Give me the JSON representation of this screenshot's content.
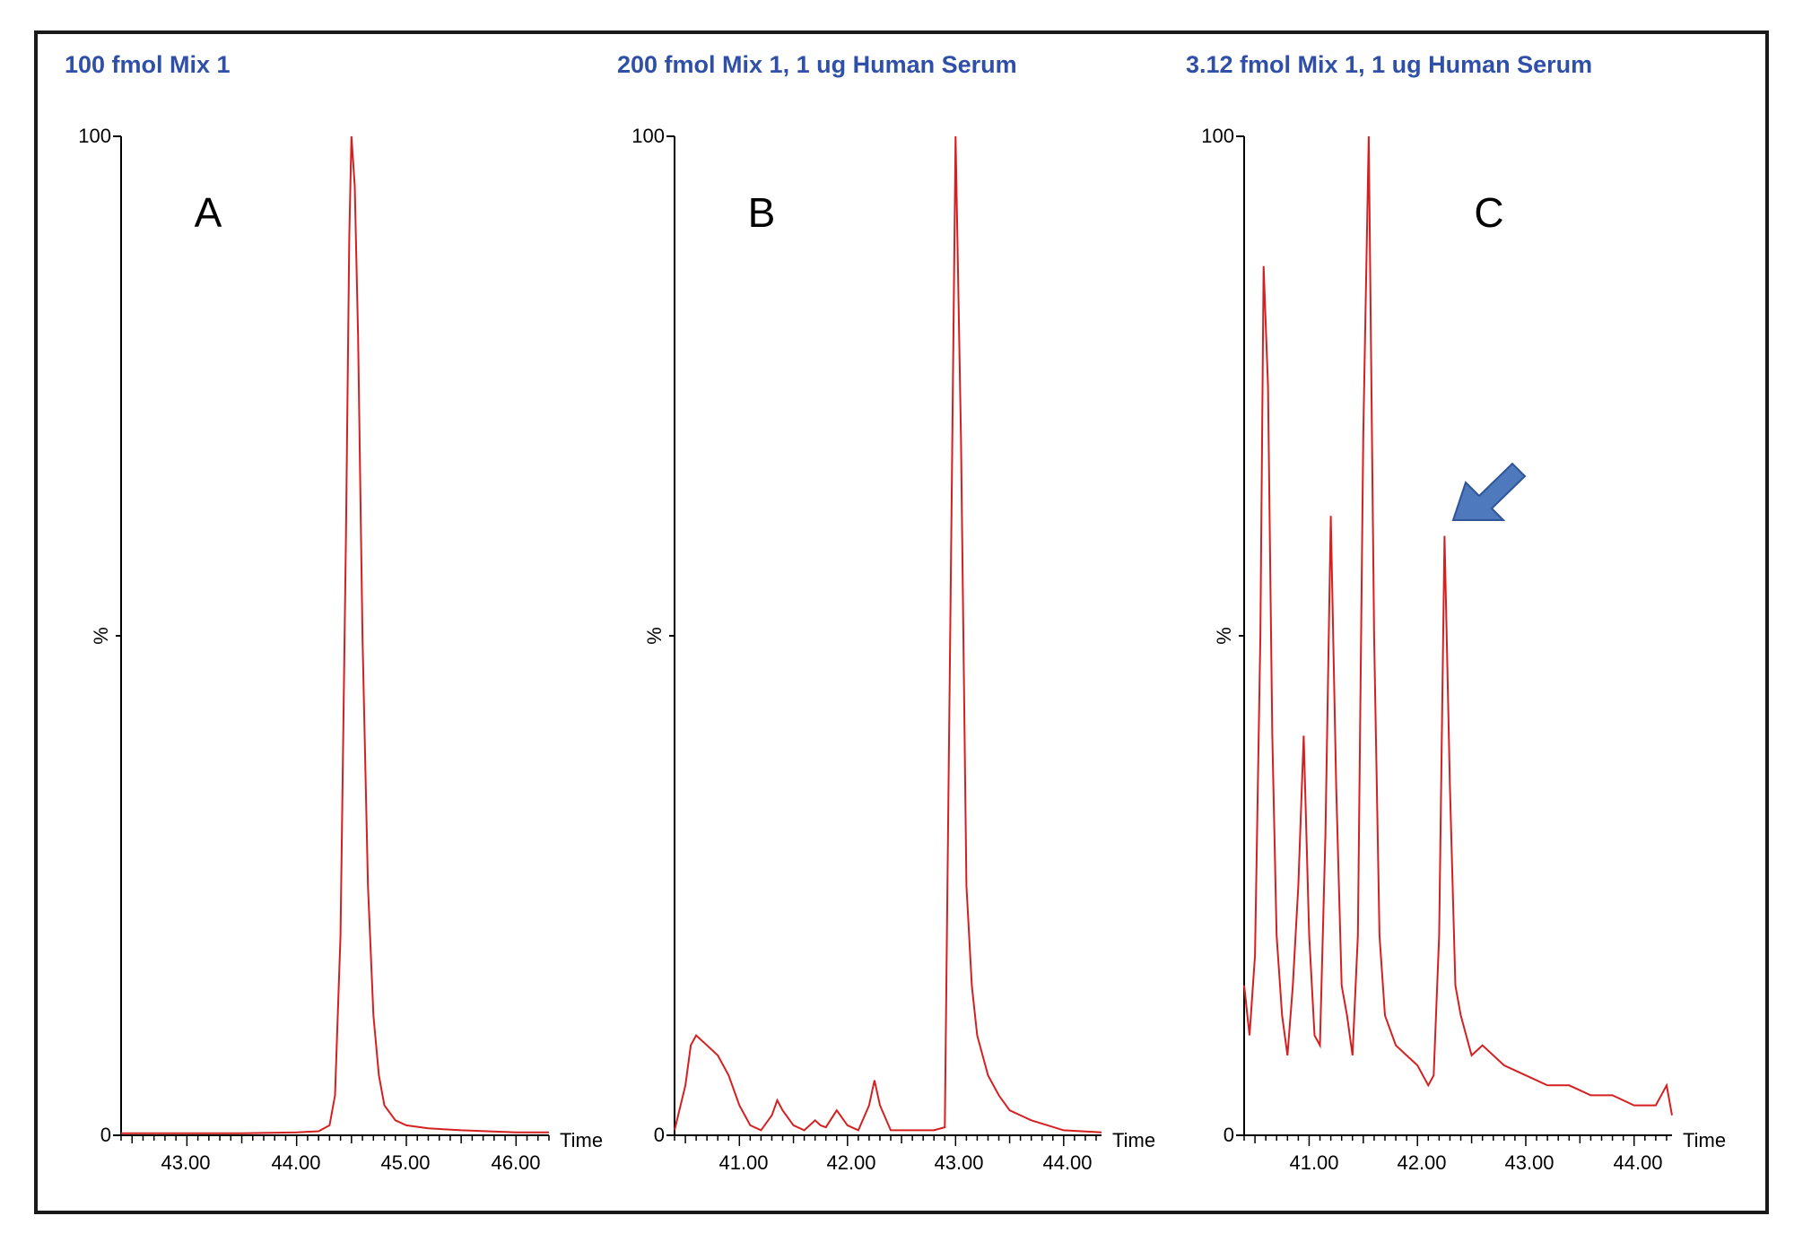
{
  "colors": {
    "frame": "#1a1a1a",
    "title": "#2f4fa8",
    "trace": "#d42020",
    "arrow": "#4f79bd",
    "arrow_edge": "#2f5597"
  },
  "chart_data": [
    {
      "type": "line",
      "title": "100 fmol Mix 1",
      "panel_letter": "A",
      "xlabel": "Time",
      "ylabel": "%",
      "xlim": [
        42.4,
        46.3
      ],
      "ylim": [
        0,
        100
      ],
      "xticks": [
        "43.00",
        "44.00",
        "45.00",
        "46.00"
      ],
      "yticks": [
        "0",
        "100"
      ],
      "series": [
        {
          "x": [
            42.4,
            43.0,
            43.5,
            44.0,
            44.2,
            44.3,
            44.35,
            44.4,
            44.45,
            44.48,
            44.5,
            44.53,
            44.56,
            44.6,
            44.65,
            44.7,
            44.75,
            44.8,
            44.9,
            45.0,
            45.2,
            45.5,
            46.0,
            46.3
          ],
          "y": [
            0.2,
            0.2,
            0.2,
            0.3,
            0.4,
            1.0,
            4.0,
            20.0,
            60.0,
            90.0,
            100.0,
            95.0,
            80.0,
            50.0,
            25.0,
            12.0,
            6.0,
            3.0,
            1.5,
            1.0,
            0.7,
            0.5,
            0.3,
            0.3
          ]
        }
      ]
    },
    {
      "type": "line",
      "title": "200 fmol Mix 1, 1 ug Human Serum",
      "panel_letter": "B",
      "xlabel": "Time",
      "ylabel": "%",
      "xlim": [
        40.4,
        44.35
      ],
      "ylim": [
        0,
        100
      ],
      "xticks": [
        "41.00",
        "42.00",
        "43.00",
        "44.00"
      ],
      "yticks": [
        "0",
        "100"
      ],
      "series": [
        {
          "x": [
            40.4,
            40.5,
            40.55,
            40.6,
            40.7,
            40.8,
            40.9,
            41.0,
            41.1,
            41.2,
            41.3,
            41.35,
            41.4,
            41.5,
            41.6,
            41.7,
            41.75,
            41.8,
            41.9,
            42.0,
            42.1,
            42.2,
            42.25,
            42.3,
            42.4,
            42.6,
            42.8,
            42.9,
            42.95,
            43.0,
            43.05,
            43.1,
            43.15,
            43.2,
            43.3,
            43.4,
            43.5,
            43.7,
            44.0,
            44.35
          ],
          "y": [
            0.5,
            5.0,
            9.0,
            10.0,
            9.0,
            8.0,
            6.0,
            3.0,
            1.0,
            0.5,
            2.0,
            3.5,
            2.5,
            1.0,
            0.5,
            1.5,
            1.0,
            0.8,
            2.5,
            1.0,
            0.5,
            3.0,
            5.5,
            3.0,
            0.5,
            0.5,
            0.5,
            0.8,
            50.0,
            100.0,
            70.0,
            25.0,
            15.0,
            10.0,
            6.0,
            4.0,
            2.5,
            1.5,
            0.5,
            0.3
          ]
        }
      ]
    },
    {
      "type": "line",
      "title": "3.12 fmol Mix 1, 1 ug Human Serum",
      "panel_letter": "C",
      "xlabel": "Time",
      "ylabel": "%",
      "xlim": [
        40.4,
        44.35
      ],
      "ylim": [
        0,
        100
      ],
      "xticks": [
        "41.00",
        "42.00",
        "43.00",
        "44.00"
      ],
      "yticks": [
        "0",
        "100"
      ],
      "series": [
        {
          "x": [
            40.4,
            40.45,
            40.5,
            40.55,
            40.58,
            40.62,
            40.66,
            40.7,
            40.75,
            40.8,
            40.85,
            40.9,
            40.95,
            41.0,
            41.05,
            41.1,
            41.15,
            41.2,
            41.25,
            41.3,
            41.35,
            41.4,
            41.45,
            41.5,
            41.55,
            41.6,
            41.65,
            41.7,
            41.8,
            41.9,
            42.0,
            42.1,
            42.15,
            42.2,
            42.25,
            42.3,
            42.35,
            42.4,
            42.5,
            42.6,
            42.8,
            43.0,
            43.2,
            43.4,
            43.6,
            43.8,
            44.0,
            44.2,
            44.3,
            44.35
          ],
          "y": [
            15.0,
            10.0,
            18.0,
            50.0,
            87.0,
            75.0,
            40.0,
            20.0,
            12.0,
            8.0,
            15.0,
            25.0,
            40.0,
            20.0,
            10.0,
            9.0,
            30.0,
            62.0,
            35.0,
            15.0,
            12.0,
            8.0,
            20.0,
            70.0,
            100.0,
            50.0,
            20.0,
            12.0,
            9.0,
            8.0,
            7.0,
            5.0,
            6.0,
            20.0,
            60.0,
            35.0,
            15.0,
            12.0,
            8.0,
            9.0,
            7.0,
            6.0,
            5.0,
            5.0,
            4.0,
            4.0,
            3.0,
            3.0,
            5.0,
            2.0
          ]
        }
      ]
    }
  ]
}
